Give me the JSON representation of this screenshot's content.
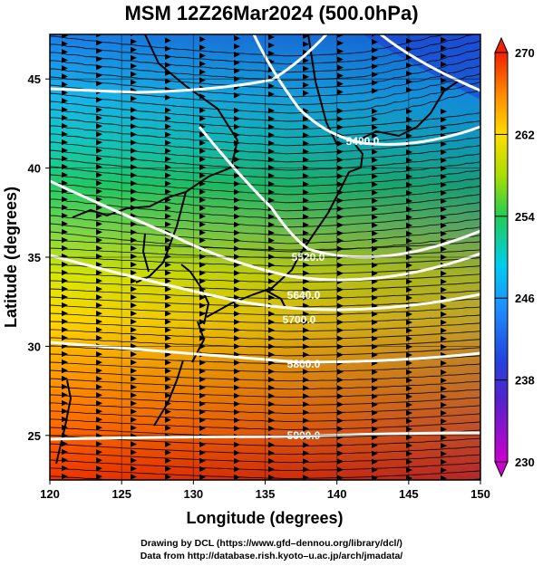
{
  "title": "MSM 12Z26Mar2024 (500.0hPa)",
  "map": {
    "xlabel": "Longitude (degrees)",
    "ylabel": "Latitude  (degrees)",
    "lon_range": [
      120,
      150
    ],
    "lat_range": [
      22.5,
      47.5
    ],
    "lon_ticks": [
      "120",
      "125",
      "130",
      "135",
      "140",
      "145",
      "150"
    ],
    "lat_ticks": [
      "25",
      "30",
      "35",
      "40",
      "45"
    ],
    "shading": "temperature",
    "vectors": "wind streamlines",
    "contour_labels": [
      "5400.0",
      "5520.0",
      "5640.0",
      "5700.0",
      "5800.0",
      "5900.0"
    ]
  },
  "colorbar": {
    "min": 230,
    "max": 270,
    "ticks": [
      "270",
      "262",
      "254",
      "246",
      "238",
      "230"
    ],
    "colors": [
      "#c000c0",
      "#3333cc",
      "#1e90ff",
      "#00ccee",
      "#22cc55",
      "#aadd00",
      "#ffdd00",
      "#ff8800",
      "#ee2200"
    ]
  },
  "footer": {
    "line1": "Drawing by DCL (https://www.gfd–dennou.org/library/dcl/)",
    "line2": "Data from http://database.rish.kyoto–u.ac.jp/arch/jmadata/"
  }
}
